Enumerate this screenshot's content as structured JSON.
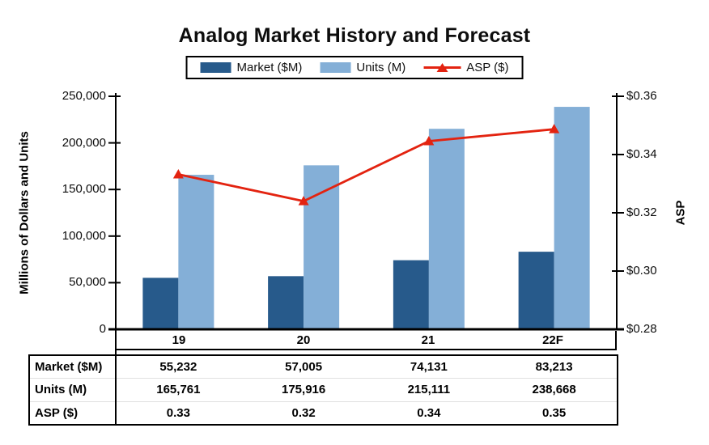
{
  "title": "Analog Market History and Forecast",
  "legend": {
    "items": [
      {
        "label": "Market ($M)",
        "type": "bar",
        "color": "#275a8b"
      },
      {
        "label": "Units (M)",
        "type": "bar",
        "color": "#84afd7"
      },
      {
        "label": "ASP ($)",
        "type": "line",
        "color": "#e32310"
      }
    ]
  },
  "chart_data": {
    "type": "bar+line",
    "title": "Analog Market History and Forecast",
    "categories": [
      "19",
      "20",
      "21",
      "22F"
    ],
    "series": [
      {
        "name": "Market ($M)",
        "type": "bar",
        "axis": "left",
        "color": "#275a8b",
        "values": [
          55232,
          57005,
          74131,
          83213
        ]
      },
      {
        "name": "Units (M)",
        "type": "bar",
        "axis": "left",
        "color": "#84afd7",
        "values": [
          165761,
          175916,
          215111,
          238668
        ]
      },
      {
        "name": "ASP ($)",
        "type": "line",
        "axis": "right",
        "color": "#e32310",
        "marker": "triangle",
        "values": [
          0.3332,
          0.324,
          0.3446,
          0.3487
        ]
      }
    ],
    "left_axis": {
      "title": "Millions of Dollars and Units",
      "min": 0,
      "max": 250000,
      "tick_labels": [
        "0",
        "50,000",
        "100,000",
        "150,000",
        "200,000",
        "250,000"
      ]
    },
    "right_axis": {
      "title": "ASP",
      "min": 0.28,
      "max": 0.36,
      "tick_labels": [
        "$0.28",
        "$0.30",
        "$0.32",
        "$0.34",
        "$0.36"
      ]
    },
    "grid": false,
    "legend_position": "top"
  },
  "table": {
    "rows": [
      {
        "label": "Market ($M)",
        "cells": [
          "55,232",
          "57,005",
          "74,131",
          "83,213"
        ]
      },
      {
        "label": "Units (M)",
        "cells": [
          "165,761",
          "175,916",
          "215,111",
          "238,668"
        ]
      },
      {
        "label": "ASP ($)",
        "cells": [
          "0.33",
          "0.32",
          "0.34",
          "0.35"
        ]
      }
    ]
  }
}
